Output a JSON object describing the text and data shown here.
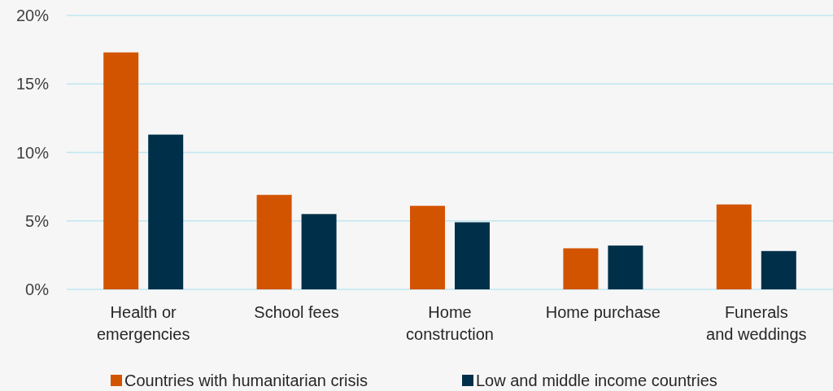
{
  "chart_data": {
    "type": "bar",
    "categories": [
      "Health or emergencies",
      "School fees",
      "Home construction",
      "Home purchase",
      "Funerals and weddings"
    ],
    "series": [
      {
        "name": "Countries with humanitarian crisis",
        "color": "#d35400",
        "values": [
          17.3,
          6.9,
          6.1,
          3.0,
          6.2
        ]
      },
      {
        "name": "Low and middle income countries",
        "color": "#003049",
        "values": [
          11.3,
          5.5,
          4.9,
          3.2,
          2.8
        ]
      }
    ],
    "ylim": [
      0,
      20
    ],
    "yticks": [
      {
        "value": 0,
        "label": "0%"
      },
      {
        "value": 5,
        "label": "5%"
      },
      {
        "value": 10,
        "label": "10%"
      },
      {
        "value": 15,
        "label": "15%"
      },
      {
        "value": 20,
        "label": "20%"
      }
    ],
    "grid": "y",
    "legend": "bottom"
  }
}
